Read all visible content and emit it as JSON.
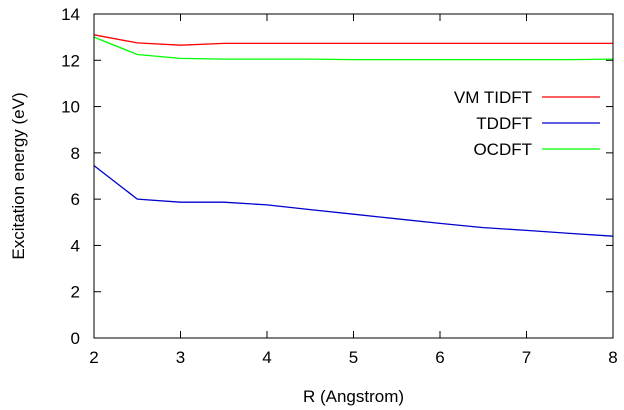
{
  "chart_data": {
    "type": "line",
    "title": "",
    "xlabel": "R (Angstrom)",
    "ylabel": "Excitation energy (eV)",
    "xlim": [
      2,
      8
    ],
    "ylim": [
      0,
      14
    ],
    "xticks": [
      2,
      3,
      4,
      5,
      6,
      7,
      8
    ],
    "yticks": [
      0,
      2,
      4,
      6,
      8,
      10,
      12,
      14
    ],
    "grid": false,
    "legend_position": "right, inside",
    "series": [
      {
        "name": "VM TIDFT",
        "color": "#ff0000",
        "x": [
          2.0,
          2.5,
          3.0,
          3.5,
          4.0,
          4.5,
          5.0,
          5.5,
          6.0,
          6.5,
          7.0,
          7.5,
          8.0
        ],
        "y": [
          13.1,
          12.75,
          12.65,
          12.73,
          12.73,
          12.73,
          12.73,
          12.73,
          12.73,
          12.73,
          12.73,
          12.73,
          12.73
        ]
      },
      {
        "name": "TDDFT",
        "color": "#0000cd",
        "x": [
          2.0,
          2.5,
          3.0,
          3.5,
          4.0,
          4.5,
          5.0,
          5.5,
          6.0,
          6.5,
          7.0,
          7.5,
          8.0
        ],
        "y": [
          7.45,
          6.0,
          5.87,
          5.87,
          5.75,
          5.55,
          5.35,
          5.15,
          4.95,
          4.77,
          4.65,
          4.52,
          4.4
        ]
      },
      {
        "name": "OCDFT",
        "color": "#00ff00",
        "x": [
          2.0,
          2.5,
          3.0,
          3.5,
          4.0,
          4.5,
          5.0,
          5.5,
          6.0,
          6.5,
          7.0,
          7.5,
          8.0
        ],
        "y": [
          13.0,
          12.25,
          12.08,
          12.05,
          12.05,
          12.05,
          12.03,
          12.03,
          12.03,
          12.03,
          12.03,
          12.03,
          12.05
        ]
      }
    ]
  }
}
